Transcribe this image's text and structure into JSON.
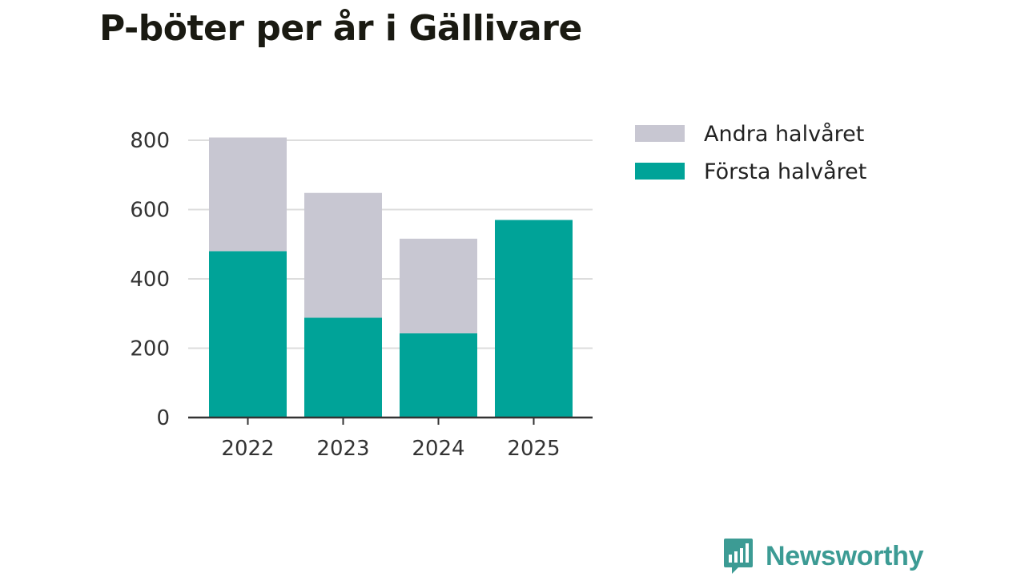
{
  "chart_data": {
    "type": "bar",
    "stacked": true,
    "title": "P-böter per år i Gällivare",
    "categories": [
      "2022",
      "2023",
      "2024",
      "2025"
    ],
    "series": [
      {
        "name": "Första halvåret",
        "color": "#00a398",
        "values": [
          480,
          288,
          243,
          570
        ]
      },
      {
        "name": "Andra halvåret",
        "color": "#c8c7d2",
        "values": [
          328,
          360,
          273,
          0
        ]
      }
    ],
    "legend_order": [
      "Andra halvåret",
      "Första halvåret"
    ],
    "yticks": [
      0,
      200,
      400,
      600,
      800
    ],
    "ylim": [
      0,
      800
    ],
    "xlabel": "",
    "ylabel": "",
    "legend_position": "right"
  },
  "branding": {
    "name": "Newsworthy",
    "color": "#3c9b94",
    "icon": "bar-chart-speech-bubble-icon"
  }
}
